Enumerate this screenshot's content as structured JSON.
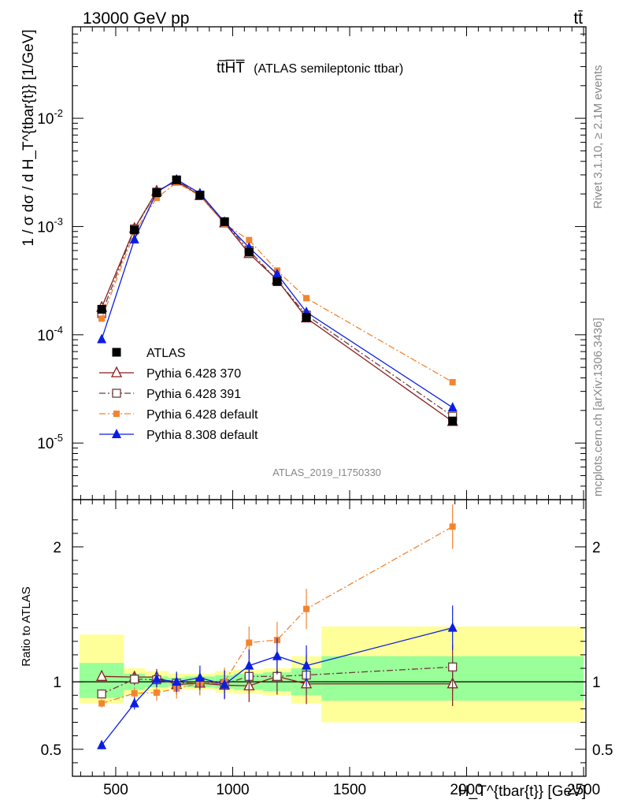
{
  "header": {
    "left": "13000 GeV pp",
    "right": "tt̄"
  },
  "side": {
    "rivet": "Rivet 3.1.10, ≥ 2.1M events",
    "mcplots": "mcplots.cern.ch [arXiv:1306.3436]"
  },
  "chart_data": {
    "type": "line",
    "title_main": "tt̅H̅T̅",
    "title_sub": "(ATLAS semileptonic ttbar)",
    "analysis_id": "ATLAS_2019_I1750330",
    "xlabel": "H_T^{tbar{t}} [GeV]",
    "ylabel_main": "1 / σ dσ / d H_T^{tbar{t}} [1/GeV]",
    "ylabel_ratio": "Ratio to ATLAS",
    "xlim": [
      315,
      2510
    ],
    "ylim_main": [
      3e-06,
      0.07
    ],
    "ylog": true,
    "ylim_ratio": [
      0.3,
      2.35
    ],
    "xticks": [
      500,
      1000,
      1500,
      2000,
      2500
    ],
    "xtick_labels": [
      "500",
      "1000",
      "1500",
      "2000",
      "2500"
    ],
    "ytick_labels_main": [
      "10^-5",
      "10^-4",
      "10^-3",
      "10^-2"
    ],
    "ytick_labels_ratio": [
      "0.5",
      "1",
      "2"
    ],
    "x": [
      440,
      580,
      675,
      760,
      860,
      965,
      1070,
      1190,
      1315,
      1940
    ],
    "bin_edges": [
      345,
      535,
      625,
      725,
      795,
      925,
      1005,
      1130,
      1250,
      1380,
      2500
    ],
    "legend_position": "bottom-left",
    "series": [
      {
        "name": "ATLAS",
        "color": "#000000",
        "marker": "square-filled",
        "values": [
          0.000172,
          0.00093,
          0.00205,
          0.0027,
          0.00195,
          0.00111,
          0.00058,
          0.00031,
          0.000145,
          1.6e-05
        ]
      },
      {
        "name": "Pythia 6.428 370",
        "color": "#8b1a1a",
        "marker": "triangle-open",
        "line": "solid",
        "values": [
          0.000179,
          0.00096,
          0.00212,
          0.00264,
          0.00193,
          0.00108,
          0.000563,
          0.000322,
          0.000143,
          1.58e-05
        ],
        "ratio": [
          1.04,
          1.035,
          1.035,
          0.98,
          0.99,
          0.975,
          0.97,
          1.04,
          0.985,
          0.985
        ]
      },
      {
        "name": "Pythia 6.428 391",
        "color": "#6e3a3a",
        "marker": "square-open",
        "line": "dashdot",
        "values": [
          0.000157,
          0.00095,
          0.00208,
          0.00268,
          0.00195,
          0.00109,
          0.000602,
          0.00032,
          0.000152,
          1.77e-05
        ],
        "ratio": [
          0.91,
          1.02,
          1.015,
          0.99,
          1.0,
          0.985,
          1.04,
          1.04,
          1.05,
          1.11
        ]
      },
      {
        "name": "Pythia 6.428 default",
        "color": "#f28430",
        "marker": "square-filled-small",
        "line": "dashdot",
        "values": [
          0.000141,
          0.00088,
          0.00184,
          0.00254,
          0.00192,
          0.00106,
          0.00075,
          0.000392,
          0.000218,
          3.65e-05
        ],
        "ratio": [
          0.84,
          0.915,
          0.92,
          0.95,
          0.99,
          1.0,
          1.29,
          1.31,
          1.54,
          2.15
        ]
      },
      {
        "name": "Pythia 8.308 default",
        "color": "#0b1ee0",
        "marker": "triangle-filled",
        "line": "solid",
        "values": [
          9.1e-05,
          0.00076,
          0.00207,
          0.00272,
          0.00203,
          0.0011,
          0.00064,
          0.000364,
          0.000162,
          2.13e-05
        ],
        "ratio": [
          0.53,
          0.84,
          1.02,
          1.0,
          1.03,
          0.98,
          1.12,
          1.19,
          1.12,
          1.4
        ]
      }
    ],
    "uncertainty_band_inner": [
      [
        0.88,
        1.14
      ],
      [
        0.94,
        1.06
      ],
      [
        0.96,
        1.04
      ],
      [
        0.97,
        1.03
      ],
      [
        0.96,
        1.04
      ],
      [
        0.95,
        1.05
      ],
      [
        0.94,
        1.06
      ],
      [
        0.93,
        1.07
      ],
      [
        0.9,
        1.1
      ],
      [
        0.86,
        1.19
      ]
    ],
    "uncertainty_band_outer": [
      [
        0.84,
        1.35
      ],
      [
        0.9,
        1.1
      ],
      [
        0.93,
        1.08
      ],
      [
        0.95,
        1.06
      ],
      [
        0.94,
        1.06
      ],
      [
        0.92,
        1.08
      ],
      [
        0.91,
        1.09
      ],
      [
        0.9,
        1.1
      ],
      [
        0.84,
        1.19
      ],
      [
        0.7,
        1.41
      ]
    ]
  }
}
